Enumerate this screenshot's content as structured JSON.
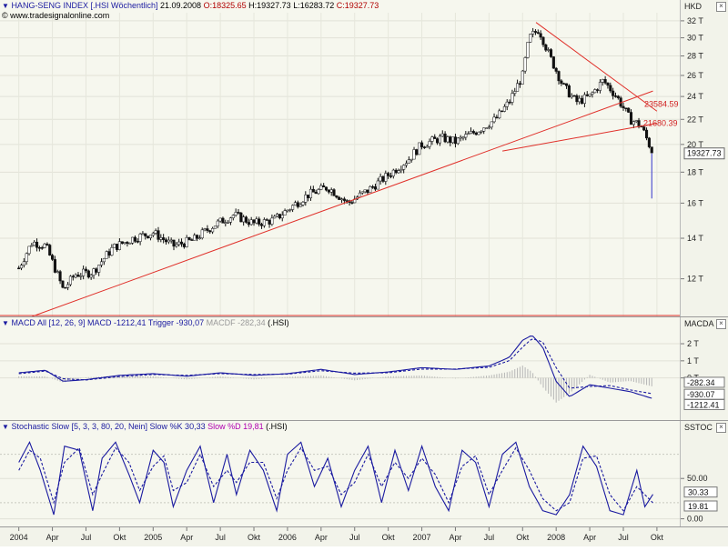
{
  "price_panel": {
    "header": {
      "name": "HANG-SENG INDEX [.HSI  Wöchentlich]",
      "date": "21.09.2008",
      "open": "O:18325.65",
      "high": "H:19327.73",
      "low": "L:16283.72",
      "close": "C:19327.73"
    },
    "source": "www.tradesignalonline.com",
    "axis_title": "HKD",
    "y_ticks": [
      "32 T",
      "30 T",
      "28 T",
      "26 T",
      "24 T",
      "22 T",
      "20 T",
      "18 T",
      "16 T",
      "14 T",
      "12 T"
    ],
    "price_tag": "19327.73",
    "line_labels": [
      "23584.59",
      "21680.39"
    ]
  },
  "macd_panel": {
    "header": {
      "name": "MACD All [12, 26, 9]",
      "macd": "MACD -1212,41",
      "trigger": "Trigger -930,07",
      "macdf": "MACDF -282,34",
      "symbol": "(.HSI)"
    },
    "axis_title": "MACDA",
    "y_ticks": [
      "2 T",
      "1 T",
      "0 T"
    ],
    "tags": [
      "-282.34",
      "-930.07",
      "-1212.41"
    ]
  },
  "stoch_panel": {
    "header": {
      "name": "Stochastic Slow [5, 3, 3, 80, 20, Nein]",
      "k": "Slow %K 30,33",
      "d": "Slow %D 19,81",
      "symbol": "(.HSI)"
    },
    "axis_title": "SSTOC",
    "y_ticks": [
      "50.00",
      "0.00"
    ],
    "tags": [
      "30.33",
      "19.81"
    ]
  },
  "x_labels": [
    "2004",
    "Apr",
    "Jul",
    "Okt",
    "2005",
    "Apr",
    "Jul",
    "Okt",
    "2006",
    "Apr",
    "Jul",
    "Okt",
    "2007",
    "Apr",
    "Jul",
    "Okt",
    "2008",
    "Apr",
    "Jul",
    "Okt"
  ],
  "chart_data": [
    {
      "type": "line",
      "title": "HANG-SENG INDEX [.HSI  Wöchentlich]",
      "ylabel": "HKD",
      "ylim": [
        10000,
        33000
      ],
      "log_scale": true,
      "series": [
        {
          "name": "HANG-SENG INDEX",
          "x": [
            2004.0,
            2004.1,
            2004.2,
            2004.33,
            2004.42,
            2004.55,
            2004.7,
            2004.85,
            2005.0,
            2005.15,
            2005.3,
            2005.45,
            2005.6,
            2005.75,
            2005.9,
            2006.0,
            2006.15,
            2006.3,
            2006.45,
            2006.6,
            2006.75,
            2006.9,
            2007.0,
            2007.15,
            2007.25,
            2007.4,
            2007.55,
            2007.65,
            2007.75,
            2007.8,
            2007.87,
            2007.95,
            2008.05,
            2008.15,
            2008.25,
            2008.35,
            2008.45,
            2008.55,
            2008.63,
            2008.72
          ],
          "values": [
            12500,
            13800,
            13600,
            11500,
            12200,
            12300,
            13500,
            14000,
            14300,
            13600,
            13900,
            14700,
            15300,
            14800,
            15000,
            15600,
            16500,
            17000,
            16000,
            16800,
            17800,
            18900,
            20000,
            20500,
            20200,
            21000,
            22000,
            23500,
            26000,
            30000,
            31000,
            28000,
            25000,
            23500,
            24000,
            25500,
            24000,
            22000,
            21500,
            19327.73
          ]
        }
      ],
      "trendlines": [
        {
          "name": "support",
          "from": [
            2004.1,
            10400
          ],
          "to": [
            2008.72,
            24500
          ]
        },
        {
          "name": "resistance",
          "from": [
            2007.85,
            31800
          ],
          "to": [
            2008.75,
            22700
          ]
        },
        {
          "name": "neckline",
          "from": [
            2007.6,
            19500
          ],
          "to": [
            2008.75,
            21680.39
          ]
        }
      ]
    },
    {
      "type": "line",
      "title": "MACD All [12, 26, 9]",
      "ylabel": "MACDA",
      "ylim": [
        -2200,
        2800
      ],
      "series": [
        {
          "name": "MACD",
          "x": [
            2004.0,
            2004.2,
            2004.33,
            2004.5,
            2004.75,
            2005.0,
            2005.25,
            2005.5,
            2005.75,
            2006.0,
            2006.25,
            2006.5,
            2006.75,
            2007.0,
            2007.25,
            2007.5,
            2007.65,
            2007.75,
            2007.82,
            2007.9,
            2008.0,
            2008.1,
            2008.25,
            2008.4,
            2008.55,
            2008.72
          ],
          "values": [
            300,
            450,
            -200,
            -100,
            150,
            250,
            100,
            300,
            150,
            250,
            500,
            200,
            350,
            600,
            500,
            700,
            1200,
            2200,
            2500,
            1800,
            -200,
            -1100,
            -400,
            -600,
            -800,
            -1212.41
          ]
        },
        {
          "name": "Trigger",
          "x": [
            2004.0,
            2004.2,
            2004.33,
            2004.5,
            2004.75,
            2005.0,
            2005.25,
            2005.5,
            2005.75,
            2006.0,
            2006.25,
            2006.5,
            2006.75,
            2007.0,
            2007.25,
            2007.5,
            2007.65,
            2007.75,
            2007.82,
            2007.9,
            2008.0,
            2008.1,
            2008.25,
            2008.4,
            2008.55,
            2008.72
          ],
          "values": [
            250,
            400,
            -50,
            -120,
            80,
            200,
            150,
            250,
            200,
            220,
            420,
            280,
            300,
            520,
            520,
            620,
            1000,
            1800,
            2300,
            2100,
            600,
            -600,
            -500,
            -450,
            -700,
            -930.07
          ]
        },
        {
          "name": "MACDF",
          "values": [
            -282.34
          ]
        }
      ]
    },
    {
      "type": "line",
      "title": "Stochastic Slow [5, 3, 3, 80, 20, Nein]",
      "ylabel": "SSTOC",
      "ylim": [
        -5,
        110
      ],
      "series": [
        {
          "name": "Slow %K",
          "x": [
            2004.0,
            2004.08,
            2004.16,
            2004.26,
            2004.34,
            2004.45,
            2004.55,
            2004.62,
            2004.72,
            2004.82,
            2004.9,
            2005.0,
            2005.08,
            2005.15,
            2005.25,
            2005.35,
            2005.45,
            2005.55,
            2005.62,
            2005.72,
            2005.82,
            2005.92,
            2006.0,
            2006.1,
            2006.2,
            2006.3,
            2006.4,
            2006.5,
            2006.6,
            2006.7,
            2006.8,
            2006.9,
            2007.0,
            2007.1,
            2007.2,
            2007.3,
            2007.4,
            2007.5,
            2007.6,
            2007.7,
            2007.8,
            2007.9,
            2008.0,
            2008.1,
            2008.2,
            2008.3,
            2008.4,
            2008.5,
            2008.6,
            2008.66,
            2008.72
          ],
          "values": [
            70,
            95,
            60,
            5,
            90,
            85,
            10,
            75,
            95,
            55,
            20,
            85,
            70,
            15,
            60,
            90,
            20,
            80,
            30,
            85,
            60,
            10,
            80,
            95,
            40,
            75,
            15,
            60,
            90,
            20,
            85,
            35,
            90,
            40,
            10,
            85,
            70,
            15,
            80,
            95,
            40,
            10,
            5,
            30,
            90,
            65,
            10,
            5,
            60,
            15,
            30.33
          ]
        },
        {
          "name": "Slow %D",
          "x": [
            2004.0,
            2004.08,
            2004.16,
            2004.26,
            2004.34,
            2004.45,
            2004.55,
            2004.62,
            2004.72,
            2004.82,
            2004.9,
            2005.0,
            2005.08,
            2005.15,
            2005.25,
            2005.35,
            2005.45,
            2005.55,
            2005.62,
            2005.72,
            2005.82,
            2005.92,
            2006.0,
            2006.1,
            2006.2,
            2006.3,
            2006.4,
            2006.5,
            2006.6,
            2006.7,
            2006.8,
            2006.9,
            2007.0,
            2007.1,
            2007.2,
            2007.3,
            2007.4,
            2007.5,
            2007.6,
            2007.7,
            2007.8,
            2007.9,
            2008.0,
            2008.1,
            2008.2,
            2008.3,
            2008.4,
            2008.5,
            2008.6,
            2008.66,
            2008.72
          ],
          "values": [
            60,
            85,
            75,
            20,
            70,
            88,
            30,
            55,
            88,
            70,
            35,
            65,
            78,
            35,
            45,
            80,
            40,
            60,
            45,
            70,
            70,
            25,
            60,
            88,
            60,
            65,
            30,
            45,
            80,
            40,
            70,
            50,
            75,
            55,
            20,
            65,
            78,
            30,
            60,
            88,
            60,
            25,
            10,
            20,
            75,
            78,
            30,
            10,
            40,
            30,
            19.81
          ]
        }
      ]
    }
  ]
}
